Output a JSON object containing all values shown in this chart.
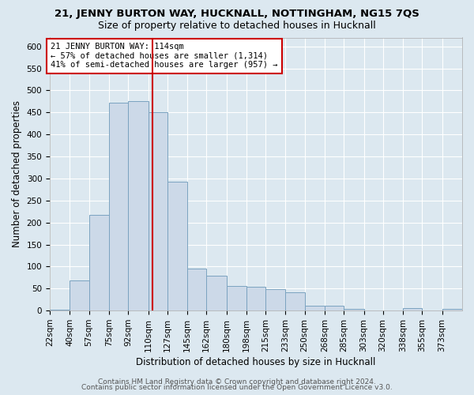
{
  "title": "21, JENNY BURTON WAY, HUCKNALL, NOTTINGHAM, NG15 7QS",
  "subtitle": "Size of property relative to detached houses in Hucknall",
  "xlabel": "Distribution of detached houses by size in Hucknall",
  "ylabel": "Number of detached properties",
  "footer1": "Contains HM Land Registry data © Crown copyright and database right 2024.",
  "footer2": "Contains public sector information licensed under the Open Government Licence v3.0.",
  "bin_labels": [
    "22sqm",
    "40sqm",
    "57sqm",
    "75sqm",
    "92sqm",
    "110sqm",
    "127sqm",
    "145sqm",
    "162sqm",
    "180sqm",
    "198sqm",
    "215sqm",
    "233sqm",
    "250sqm",
    "268sqm",
    "285sqm",
    "303sqm",
    "320sqm",
    "338sqm",
    "355sqm",
    "373sqm"
  ],
  "bar_values": [
    3,
    68,
    218,
    472,
    475,
    450,
    293,
    95,
    80,
    56,
    55,
    48,
    42,
    11,
    11,
    4,
    0,
    0,
    5,
    0,
    4
  ],
  "bar_color": "#ccd9e8",
  "bar_edge_color": "#7ba3c0",
  "property_line_x": 114,
  "bin_edges": [
    22,
    40,
    57,
    75,
    92,
    110,
    127,
    145,
    162,
    180,
    198,
    215,
    233,
    250,
    268,
    285,
    303,
    320,
    338,
    355,
    373,
    391
  ],
  "annotation_line1": "21 JENNY BURTON WAY: 114sqm",
  "annotation_line2": "← 57% of detached houses are smaller (1,314)",
  "annotation_line3": "41% of semi-detached houses are larger (957) →",
  "annotation_box_color": "#ffffff",
  "annotation_box_edge": "#cc0000",
  "vline_color": "#cc0000",
  "ylim": [
    0,
    620
  ],
  "yticks": [
    0,
    50,
    100,
    150,
    200,
    250,
    300,
    350,
    400,
    450,
    500,
    550,
    600
  ],
  "bg_color": "#dce8f0",
  "grid_color": "#ffffff",
  "title_fontsize": 9.5,
  "subtitle_fontsize": 9,
  "axis_label_fontsize": 8.5,
  "tick_fontsize": 7.5,
  "footer_fontsize": 6.5,
  "annotation_fontsize": 7.5
}
